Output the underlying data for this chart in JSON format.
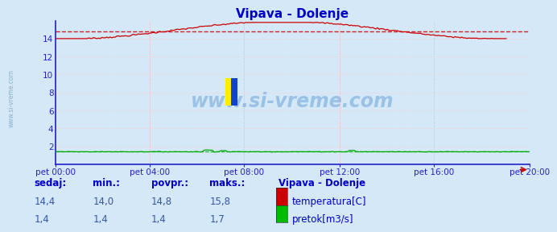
{
  "title": "Vipava - Dolenje",
  "bg_color": "#d4e8f8",
  "plot_bg_color": "#d4e8f8",
  "grid_color_v": "#ffaaaa",
  "grid_color_h": "#ffcccc",
  "x_labels": [
    "pet 00:00",
    "pet 04:00",
    "pet 08:00",
    "pet 12:00",
    "pet 16:00",
    "pet 20:00"
  ],
  "x_ticks_norm": [
    0.0,
    0.2,
    0.4,
    0.6,
    0.8,
    1.0
  ],
  "total_points": 288,
  "ylim": [
    0,
    16
  ],
  "yticks": [
    0,
    2,
    4,
    6,
    8,
    10,
    12,
    14
  ],
  "ytick_labels": [
    "",
    "2",
    "4",
    "6",
    "8",
    "10",
    "12",
    "14"
  ],
  "temp_color": "#cc0000",
  "flow_color": "#00aa00",
  "spine_color": "#2222cc",
  "temp_avg": 14.8,
  "temp_min": 14.0,
  "temp_max": 15.8,
  "flow_avg": 1.4,
  "flow_min": 1.35,
  "flow_max": 1.7,
  "watermark_text": "www.si-vreme.com",
  "watermark_color": "#4488cc",
  "watermark_alpha": 0.4,
  "title_color": "#0000cc",
  "axis_color": "#2222cc",
  "table_header_color": "#0000cc",
  "table_value_color": "#3355aa",
  "legend_title": "Vipava - Dolenje",
  "legend_items": [
    "temperatura[C]",
    "pretok[m3/s]"
  ],
  "legend_colors": [
    "#cc0000",
    "#00bb00"
  ],
  "table_headers": [
    "sedaj:",
    "min.:",
    "povpr.:",
    "maks.:"
  ],
  "table_values_temp": [
    "14,4",
    "14,0",
    "14,8",
    "15,8"
  ],
  "table_values_flow": [
    "1,4",
    "1,4",
    "1,4",
    "1,7"
  ],
  "sidebar_text": "www.si-vreme.com",
  "sidebar_color": "#6699bb"
}
